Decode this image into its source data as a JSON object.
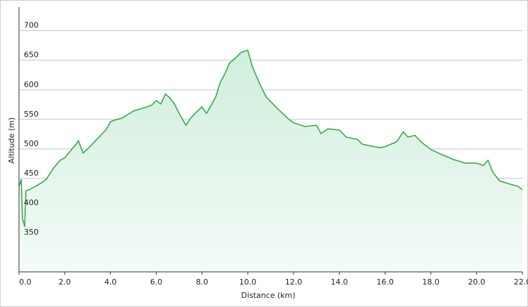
{
  "chart_data": {
    "type": "area-line",
    "x_label": "Distance  (km)",
    "y_label": "Altitude (m)",
    "color": "#3aa84a",
    "grid": true,
    "xlim": [
      0,
      22
    ],
    "ylim": [
      292,
      740
    ],
    "xticks": [
      {
        "value": 0,
        "label": "0.0"
      },
      {
        "value": 2,
        "label": "2.0"
      },
      {
        "value": 4,
        "label": "4.0"
      },
      {
        "value": 6,
        "label": "6.0"
      },
      {
        "value": 8,
        "label": "8.0"
      },
      {
        "value": 10,
        "label": "10.0"
      },
      {
        "value": 12,
        "label": "12.0"
      },
      {
        "value": 14,
        "label": "14.0"
      },
      {
        "value": 16,
        "label": "16.0"
      },
      {
        "value": 18,
        "label": "18.0"
      },
      {
        "value": 20,
        "label": "20.0"
      },
      {
        "value": 22,
        "label": "22.0"
      }
    ],
    "yticks": [
      350,
      400,
      450,
      500,
      550,
      600,
      650,
      700
    ],
    "x": [
      0,
      0.1,
      0.15,
      0.25,
      0.3,
      0.5,
      1.0,
      1.2,
      1.5,
      1.8,
      2.0,
      2.3,
      2.5,
      2.6,
      2.8,
      3.0,
      3.2,
      3.5,
      3.8,
      4.0,
      4.2,
      4.5,
      5.0,
      5.5,
      5.8,
      6.0,
      6.2,
      6.4,
      6.6,
      6.8,
      7.0,
      7.3,
      7.5,
      7.8,
      8.0,
      8.2,
      8.4,
      8.6,
      8.8,
      9.0,
      9.2,
      9.5,
      9.7,
      10.0,
      10.2,
      10.5,
      10.8,
      11.0,
      11.3,
      11.8,
      12.0,
      12.5,
      13.0,
      13.2,
      13.5,
      14.0,
      14.3,
      14.8,
      15.0,
      15.5,
      15.8,
      16.0,
      16.5,
      16.8,
      17.0,
      17.3,
      17.6,
      18.0,
      18.5,
      19.0,
      19.5,
      20.0,
      20.3,
      20.5,
      20.7,
      21.0,
      21.5,
      21.8,
      22.0
    ],
    "values": [
      437,
      448,
      383,
      369,
      429,
      432,
      443,
      449,
      467,
      481,
      485,
      499,
      508,
      514,
      493,
      500,
      508,
      520,
      532,
      546,
      549,
      552,
      564,
      570,
      574,
      582,
      576,
      593,
      586,
      576,
      560,
      540,
      552,
      564,
      571,
      560,
      574,
      588,
      613,
      627,
      645,
      655,
      663,
      667,
      639,
      612,
      588,
      580,
      568,
      550,
      544,
      538,
      540,
      526,
      534,
      532,
      520,
      516,
      508,
      504,
      502,
      504,
      512,
      529,
      520,
      523,
      511,
      499,
      490,
      482,
      476,
      476,
      472,
      481,
      461,
      446,
      440,
      437,
      431
    ]
  }
}
